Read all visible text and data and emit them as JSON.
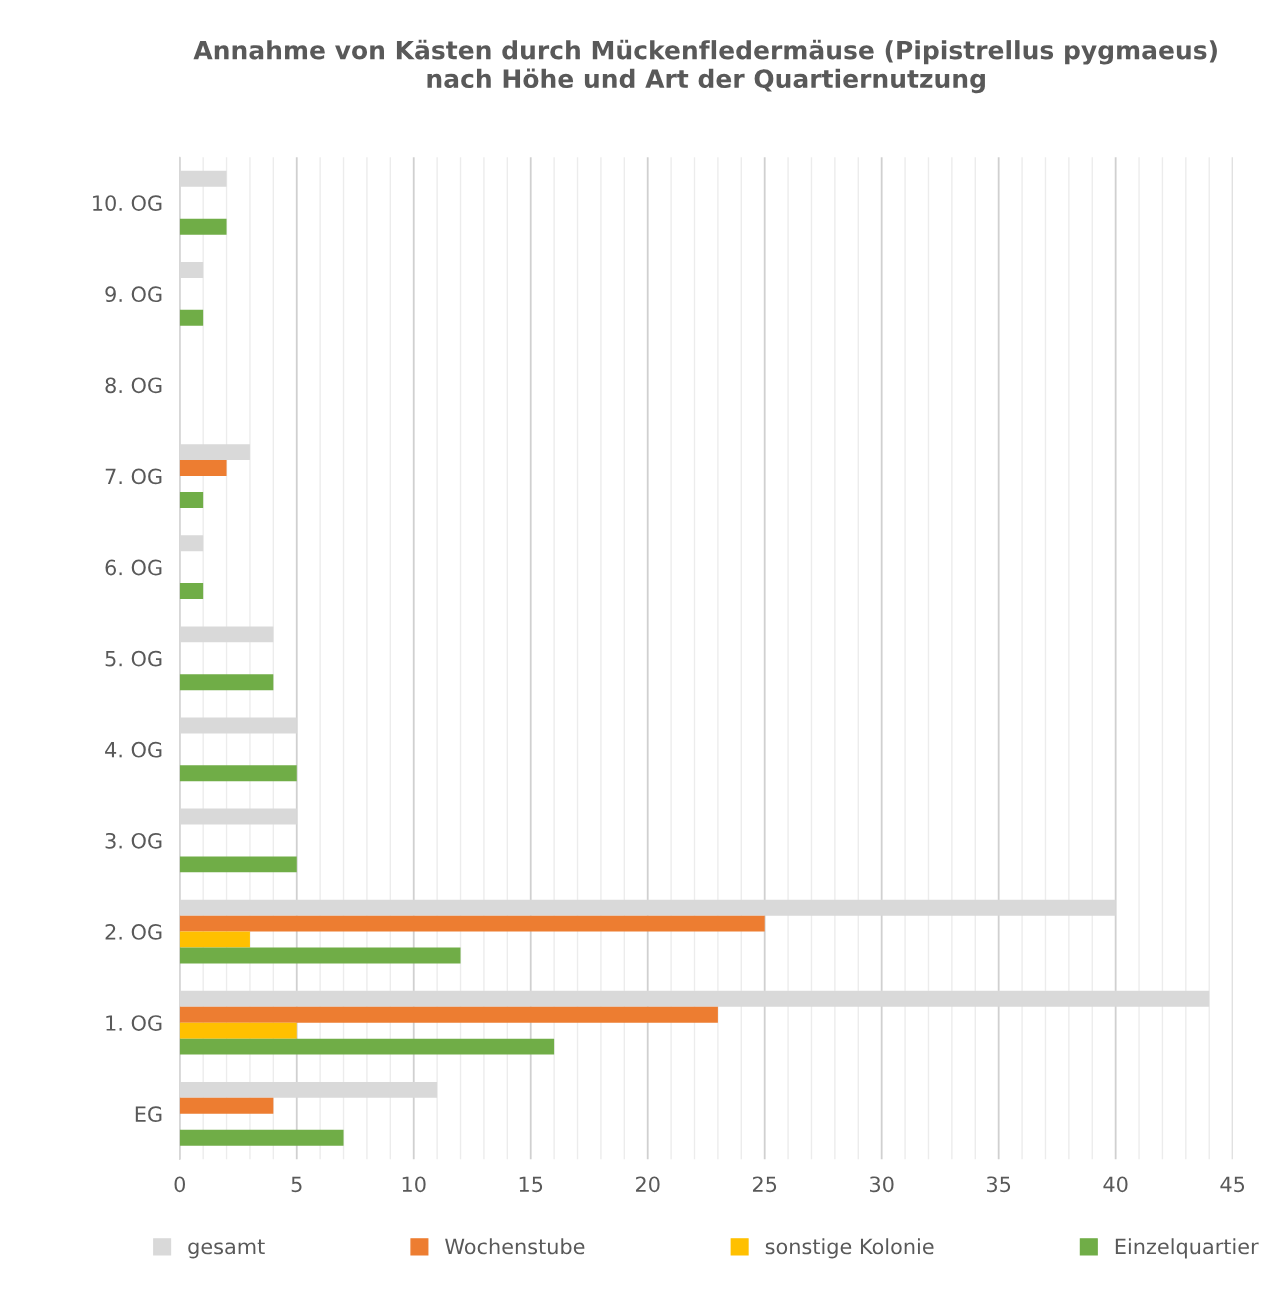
{
  "chart_data": {
    "type": "bar",
    "orientation": "horizontal",
    "title": "Annahme von Kästen durch Mückenfledermäuse (Pipistrellus pygmaeus)\nnach Höhe und Art der Quartiernutzung",
    "categories": [
      "10. OG",
      "9. OG",
      "8. OG",
      "7. OG",
      "6. OG",
      "5. OG",
      "4. OG",
      "3. OG",
      "2. OG",
      "1. OG",
      "EG"
    ],
    "series": [
      {
        "name": "gesamt",
        "color": "#d9d9d9",
        "values": [
          2,
          1,
          0,
          3,
          1,
          4,
          5,
          5,
          40,
          44,
          11
        ]
      },
      {
        "name": "Wochenstube",
        "color": "#ed7d31",
        "values": [
          0,
          0,
          0,
          2,
          0,
          0,
          0,
          0,
          25,
          23,
          4
        ]
      },
      {
        "name": "sonstige Kolonie",
        "color": "#ffc000",
        "values": [
          0,
          0,
          0,
          0,
          0,
          0,
          0,
          0,
          3,
          5,
          0
        ]
      },
      {
        "name": "Einzelquartier",
        "color": "#70ad47",
        "values": [
          2,
          1,
          0,
          1,
          1,
          4,
          5,
          5,
          12,
          16,
          7
        ]
      }
    ],
    "xlim": [
      0,
      45
    ],
    "xticks": [
      0,
      {
        "value": 1,
        "label": null
      },
      {
        "value": 2,
        "label": null
      },
      {
        "value": 3,
        "label": null
      },
      {
        "value": 4,
        "label": null
      },
      5,
      {
        "value": 6,
        "label": null
      },
      {
        "value": 7,
        "label": null
      },
      {
        "value": 8,
        "label": null
      },
      {
        "value": 9,
        "label": null
      },
      10,
      {
        "value": 11,
        "label": null
      },
      {
        "value": 12,
        "label": null
      },
      {
        "value": 13,
        "label": null
      },
      {
        "value": 14,
        "label": null
      },
      15,
      {
        "value": 16,
        "label": null
      },
      {
        "value": 17,
        "label": null
      },
      {
        "value": 18,
        "label": null
      },
      {
        "value": 19,
        "label": null
      },
      20,
      {
        "value": 21,
        "label": null
      },
      {
        "value": 22,
        "label": null
      },
      {
        "value": 23,
        "label": null
      },
      {
        "value": 24,
        "label": null
      },
      25,
      {
        "value": 26,
        "label": null
      },
      {
        "value": 27,
        "label": null
      },
      {
        "value": 28,
        "label": null
      },
      {
        "value": 29,
        "label": null
      },
      30,
      {
        "value": 31,
        "label": null
      },
      {
        "value": 32,
        "label": null
      },
      {
        "value": 33,
        "label": null
      },
      {
        "value": 34,
        "label": null
      },
      35,
      {
        "value": 36,
        "label": null
      },
      {
        "value": 37,
        "label": null
      },
      {
        "value": 38,
        "label": null
      },
      {
        "value": 39,
        "label": null
      },
      40,
      {
        "value": 41,
        "label": null
      },
      {
        "value": 42,
        "label": null
      },
      {
        "value": 43,
        "label": null
      },
      {
        "value": 44,
        "label": null
      },
      45
    ],
    "grid": "x",
    "legend": "bottom"
  }
}
